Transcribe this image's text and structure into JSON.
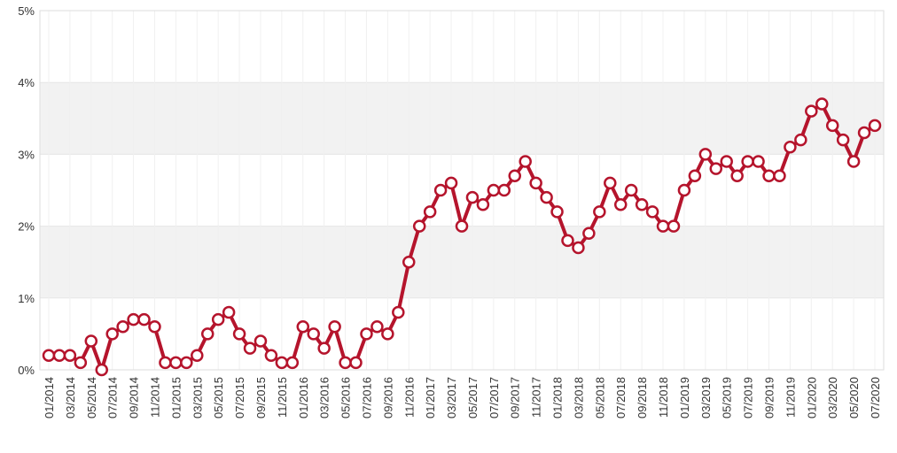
{
  "chart_data": {
    "type": "line",
    "categories": [
      "01/2014",
      null,
      "03/2014",
      null,
      "05/2014",
      null,
      "07/2014",
      null,
      "09/2014",
      null,
      "11/2014",
      null,
      "01/2015",
      null,
      "03/2015",
      null,
      "05/2015",
      null,
      "07/2015",
      null,
      "09/2015",
      null,
      "11/2015",
      null,
      "01/2016",
      null,
      "03/2016",
      null,
      "05/2016",
      null,
      "07/2016",
      null,
      "09/2016",
      null,
      "11/2016",
      null,
      "01/2017",
      null,
      "03/2017",
      null,
      "05/2017",
      null,
      "07/2017",
      null,
      "09/2017",
      null,
      "11/2017",
      null,
      "01/2018",
      null,
      "03/2018",
      null,
      "05/2018",
      null,
      "07/2018",
      null,
      "09/2018",
      null,
      "11/2018",
      null,
      "01/2019",
      null,
      "03/2019",
      null,
      "05/2019",
      null,
      "07/2019",
      null,
      "09/2019",
      null,
      "11/2019",
      null,
      "01/2020",
      null,
      "03/2020",
      null,
      "05/2020",
      null,
      "07/2020"
    ],
    "values": [
      0.2,
      0.2,
      0.2,
      0.1,
      0.4,
      0.0,
      0.5,
      0.6,
      0.7,
      0.7,
      0.6,
      0.1,
      0.1,
      0.1,
      0.2,
      0.5,
      0.7,
      0.8,
      0.5,
      0.3,
      0.4,
      0.2,
      0.1,
      0.1,
      0.6,
      0.5,
      0.3,
      0.6,
      0.1,
      0.1,
      0.5,
      0.6,
      0.5,
      0.8,
      1.5,
      2.0,
      2.2,
      2.5,
      2.6,
      2.0,
      2.4,
      2.3,
      2.5,
      2.5,
      2.7,
      2.9,
      2.6,
      2.4,
      2.2,
      1.8,
      1.7,
      1.9,
      2.2,
      2.6,
      2.3,
      2.5,
      2.3,
      2.2,
      2.0,
      2.0,
      2.5,
      2.7,
      3.0,
      2.8,
      2.9,
      2.7,
      2.9,
      2.9,
      2.7,
      2.7,
      3.1,
      3.2,
      3.6,
      3.7,
      3.4,
      3.2,
      2.9,
      3.3,
      3.4
    ],
    "color": "#b5142c",
    "ylim": [
      0,
      5
    ],
    "yticks": [
      {
        "value": 0,
        "label": "0%"
      },
      {
        "value": 1,
        "label": "1%"
      },
      {
        "value": 2,
        "label": "2%"
      },
      {
        "value": 3,
        "label": "3%"
      },
      {
        "value": 4,
        "label": "4%"
      },
      {
        "value": 5,
        "label": "5%"
      }
    ],
    "bands": true
  }
}
